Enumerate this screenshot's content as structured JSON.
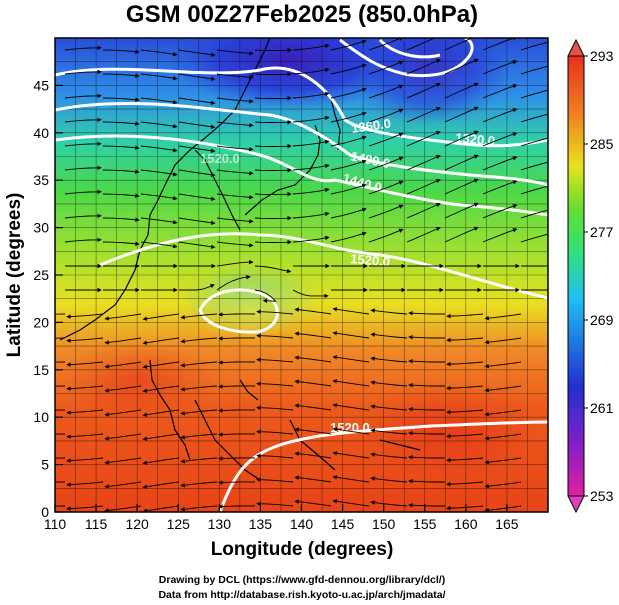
{
  "title": "GSM 00Z27Feb2025 (850.0hPa)",
  "x_axis": {
    "label": "Longitude (degrees)",
    "ticks": [
      "110",
      "115",
      "120",
      "125",
      "130",
      "135",
      "140",
      "145",
      "150",
      "155",
      "160",
      "165"
    ],
    "range": [
      110,
      170
    ]
  },
  "y_axis": {
    "label": "Latitude  (degrees)",
    "ticks": [
      "0",
      "5",
      "10",
      "15",
      "20",
      "25",
      "30",
      "35",
      "40",
      "45"
    ],
    "range": [
      0,
      50
    ]
  },
  "colorbar": {
    "labels": [
      "293",
      "285",
      "277",
      "269",
      "261",
      "253"
    ],
    "range": [
      253,
      293
    ],
    "colors": [
      "#e00080",
      "#2030d0",
      "#20c0f0",
      "#40e040",
      "#f0e000",
      "#f08000",
      "#e02000"
    ]
  },
  "contours": {
    "color": "#ffffff",
    "labels": [
      {
        "text": "1360.0"
      },
      {
        "text": "1320.0"
      },
      {
        "text": "1400.0"
      },
      {
        "text": "1440.0"
      },
      {
        "text": "1520.0"
      },
      {
        "text": "1520.0"
      },
      {
        "text": "1520.0"
      }
    ]
  },
  "credits": [
    "Drawing by DCL (https://www.gfd-dennou.org/library/dcl/)",
    "Data from http://database.rish.kyoto-u.ac.jp/arch/jmadata/"
  ]
}
